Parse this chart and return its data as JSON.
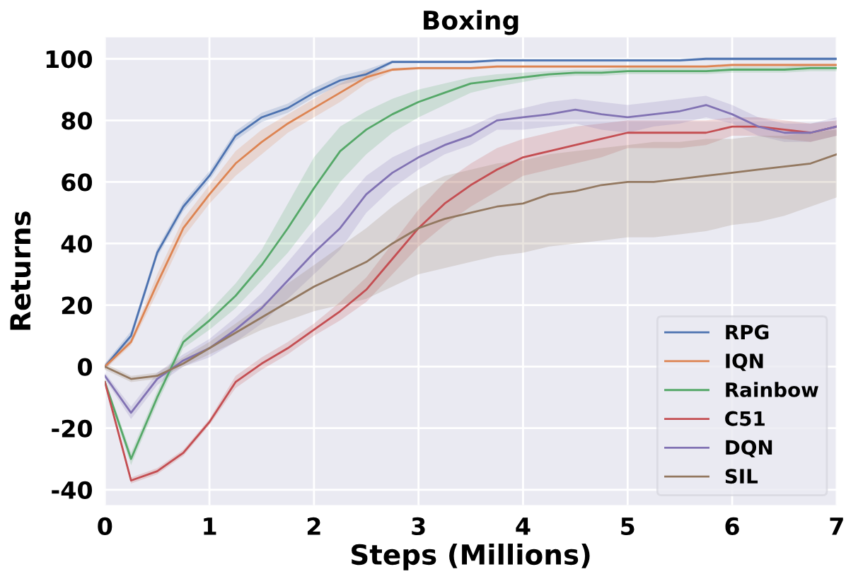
{
  "chart_data": {
    "type": "line",
    "title": "Boxing",
    "xlabel": "Steps (Millions)",
    "ylabel": "Returns",
    "x": [
      0,
      0.25,
      0.5,
      0.75,
      1,
      1.25,
      1.5,
      1.75,
      2,
      2.25,
      2.5,
      2.75,
      3,
      3.25,
      3.5,
      3.75,
      4,
      4.25,
      4.5,
      4.75,
      5,
      5.25,
      5.5,
      5.75,
      6,
      6.25,
      6.5,
      6.75,
      7
    ],
    "xlim": [
      0,
      7
    ],
    "xticks": [
      0,
      1,
      2,
      3,
      4,
      5,
      6,
      7
    ],
    "ylim": [
      -45,
      107
    ],
    "yticks": [
      -40,
      -20,
      0,
      20,
      40,
      60,
      80,
      100
    ],
    "grid": true,
    "legend": "bottom right",
    "marker": "none",
    "line_style": "solid",
    "series": [
      {
        "name": "RPG",
        "color": "#4c72b0",
        "values": [
          0,
          10,
          37,
          52,
          62,
          75,
          81,
          84,
          89,
          93,
          95,
          99,
          99,
          99,
          99,
          99.5,
          99.5,
          99.5,
          99.5,
          99.5,
          99.5,
          99.5,
          99.5,
          100,
          100,
          100,
          100,
          100,
          100
        ],
        "lower": [
          -1,
          8.5,
          35.5,
          50.5,
          60.5,
          73.5,
          79.5,
          82.5,
          87.5,
          91.5,
          93.5,
          98.5,
          98.5,
          98.5,
          98.5,
          99,
          99,
          99,
          99,
          99,
          99,
          99,
          99,
          99.5,
          99.5,
          99.5,
          99.5,
          99.5,
          99.5
        ],
        "upper": [
          1,
          11.5,
          38.5,
          53.5,
          63.5,
          76.5,
          82.5,
          85.5,
          90.5,
          94.5,
          96.5,
          99.5,
          99.5,
          99.5,
          99.5,
          100,
          100,
          100,
          100,
          100,
          100,
          100,
          100,
          100.5,
          100.5,
          100.5,
          100.5,
          100.5,
          100.5
        ]
      },
      {
        "name": "IQN",
        "color": "#dd8452",
        "values": [
          0,
          8,
          27,
          45,
          56,
          66,
          73,
          79,
          84,
          89,
          94,
          96.5,
          97,
          97,
          97,
          97.5,
          97.5,
          97.5,
          97.5,
          97.5,
          97.5,
          97.5,
          97.5,
          97.5,
          98,
          98,
          98,
          98,
          98
        ],
        "lower": [
          -1,
          7,
          24,
          42,
          53,
          62,
          69,
          76,
          81,
          86,
          92,
          96,
          96.5,
          96.5,
          96.5,
          97,
          97,
          97,
          97,
          97,
          97,
          97,
          97,
          97,
          97.5,
          97.5,
          97.5,
          97.5,
          97.5
        ],
        "upper": [
          1,
          9,
          30,
          48,
          59,
          70,
          77,
          82,
          87,
          92,
          96,
          97,
          97.5,
          97.5,
          97.5,
          98,
          98,
          98,
          98,
          98,
          98,
          98,
          98,
          98,
          98.5,
          98.5,
          98.5,
          98.5,
          98.5
        ]
      },
      {
        "name": "Rainbow",
        "color": "#55a868",
        "values": [
          -5,
          -30,
          -10,
          8,
          15,
          23,
          33,
          45,
          58,
          70,
          77,
          82,
          86,
          89,
          92,
          93,
          94,
          95,
          95.5,
          95.5,
          96,
          96,
          96,
          96,
          96.5,
          96.5,
          96.5,
          97,
          97
        ],
        "lower": [
          -6,
          -32,
          -12,
          6,
          12,
          19,
          28,
          37,
          48,
          60,
          69,
          76,
          81,
          85,
          89,
          91,
          92.5,
          94,
          94.5,
          94.5,
          95,
          95,
          95,
          95,
          95.5,
          95.5,
          95.5,
          96,
          96
        ],
        "upper": [
          -4,
          -28,
          -8,
          10,
          18,
          27,
          38,
          53,
          68,
          78,
          83,
          87,
          90,
          92,
          94,
          95,
          95.5,
          96,
          96.5,
          96.5,
          97,
          97,
          97,
          97,
          97.5,
          97.5,
          97.5,
          98,
          98
        ]
      },
      {
        "name": "C51",
        "color": "#c44e52",
        "values": [
          -5,
          -37,
          -34,
          -28,
          -18,
          -5,
          1,
          6,
          12,
          18,
          25,
          35,
          45,
          53,
          59,
          64,
          68,
          70,
          72,
          74,
          76,
          76,
          76,
          76,
          78,
          78,
          77,
          76,
          78
        ],
        "lower": [
          -6,
          -38,
          -35,
          -29,
          -19,
          -7,
          -1,
          4,
          10,
          15,
          21,
          30,
          39,
          46,
          52,
          57,
          62,
          64,
          66,
          68,
          71,
          71,
          71,
          72,
          75,
          75,
          74,
          73,
          75
        ],
        "upper": [
          -4,
          -36,
          -33,
          -27,
          -17,
          -3,
          3,
          8,
          14,
          21,
          29,
          40,
          51,
          60,
          66,
          71,
          74,
          76,
          78,
          79,
          80,
          80,
          80,
          80,
          81,
          81,
          80,
          79,
          80
        ]
      },
      {
        "name": "DQN",
        "color": "#8172b3",
        "values": [
          -3,
          -15,
          -4,
          2,
          6,
          12,
          19,
          28,
          37,
          45,
          56,
          63,
          68,
          72,
          75,
          80,
          81,
          82,
          83.5,
          82,
          81,
          82,
          83,
          85,
          82,
          78,
          76,
          76,
          78
        ],
        "lower": [
          -4,
          -17,
          -6,
          0,
          3,
          8,
          14,
          22,
          30,
          38,
          50,
          58,
          64,
          69,
          72,
          77,
          77,
          78,
          79,
          77,
          76,
          78,
          79,
          81,
          79,
          75,
          73,
          73,
          75
        ],
        "upper": [
          -2,
          -13,
          -2,
          4,
          9,
          16,
          24,
          34,
          44,
          52,
          62,
          68,
          72,
          75,
          78,
          82,
          84,
          86,
          87,
          86,
          85,
          86,
          87,
          88,
          85,
          81,
          79,
          79,
          81
        ]
      },
      {
        "name": "SIL",
        "color": "#937860",
        "values": [
          0,
          -4,
          -3,
          1,
          6,
          11,
          16,
          21,
          26,
          30,
          34,
          40,
          45,
          48,
          50,
          52,
          53,
          56,
          57,
          59,
          60,
          60,
          61,
          62,
          63,
          64,
          65,
          66,
          69
        ],
        "lower": [
          -1,
          -5,
          -4,
          0,
          4,
          8,
          12,
          15,
          18,
          20,
          22,
          26,
          30,
          32,
          34,
          36,
          37,
          39,
          40,
          41,
          42,
          42,
          43,
          44,
          46,
          47,
          49,
          52,
          55
        ],
        "upper": [
          1,
          -3,
          -2,
          3,
          8,
          14,
          20,
          27,
          33,
          39,
          45,
          52,
          58,
          62,
          64,
          66,
          67,
          69,
          70,
          71,
          72,
          73,
          73,
          74,
          74,
          75,
          75,
          76,
          77
        ]
      }
    ]
  }
}
